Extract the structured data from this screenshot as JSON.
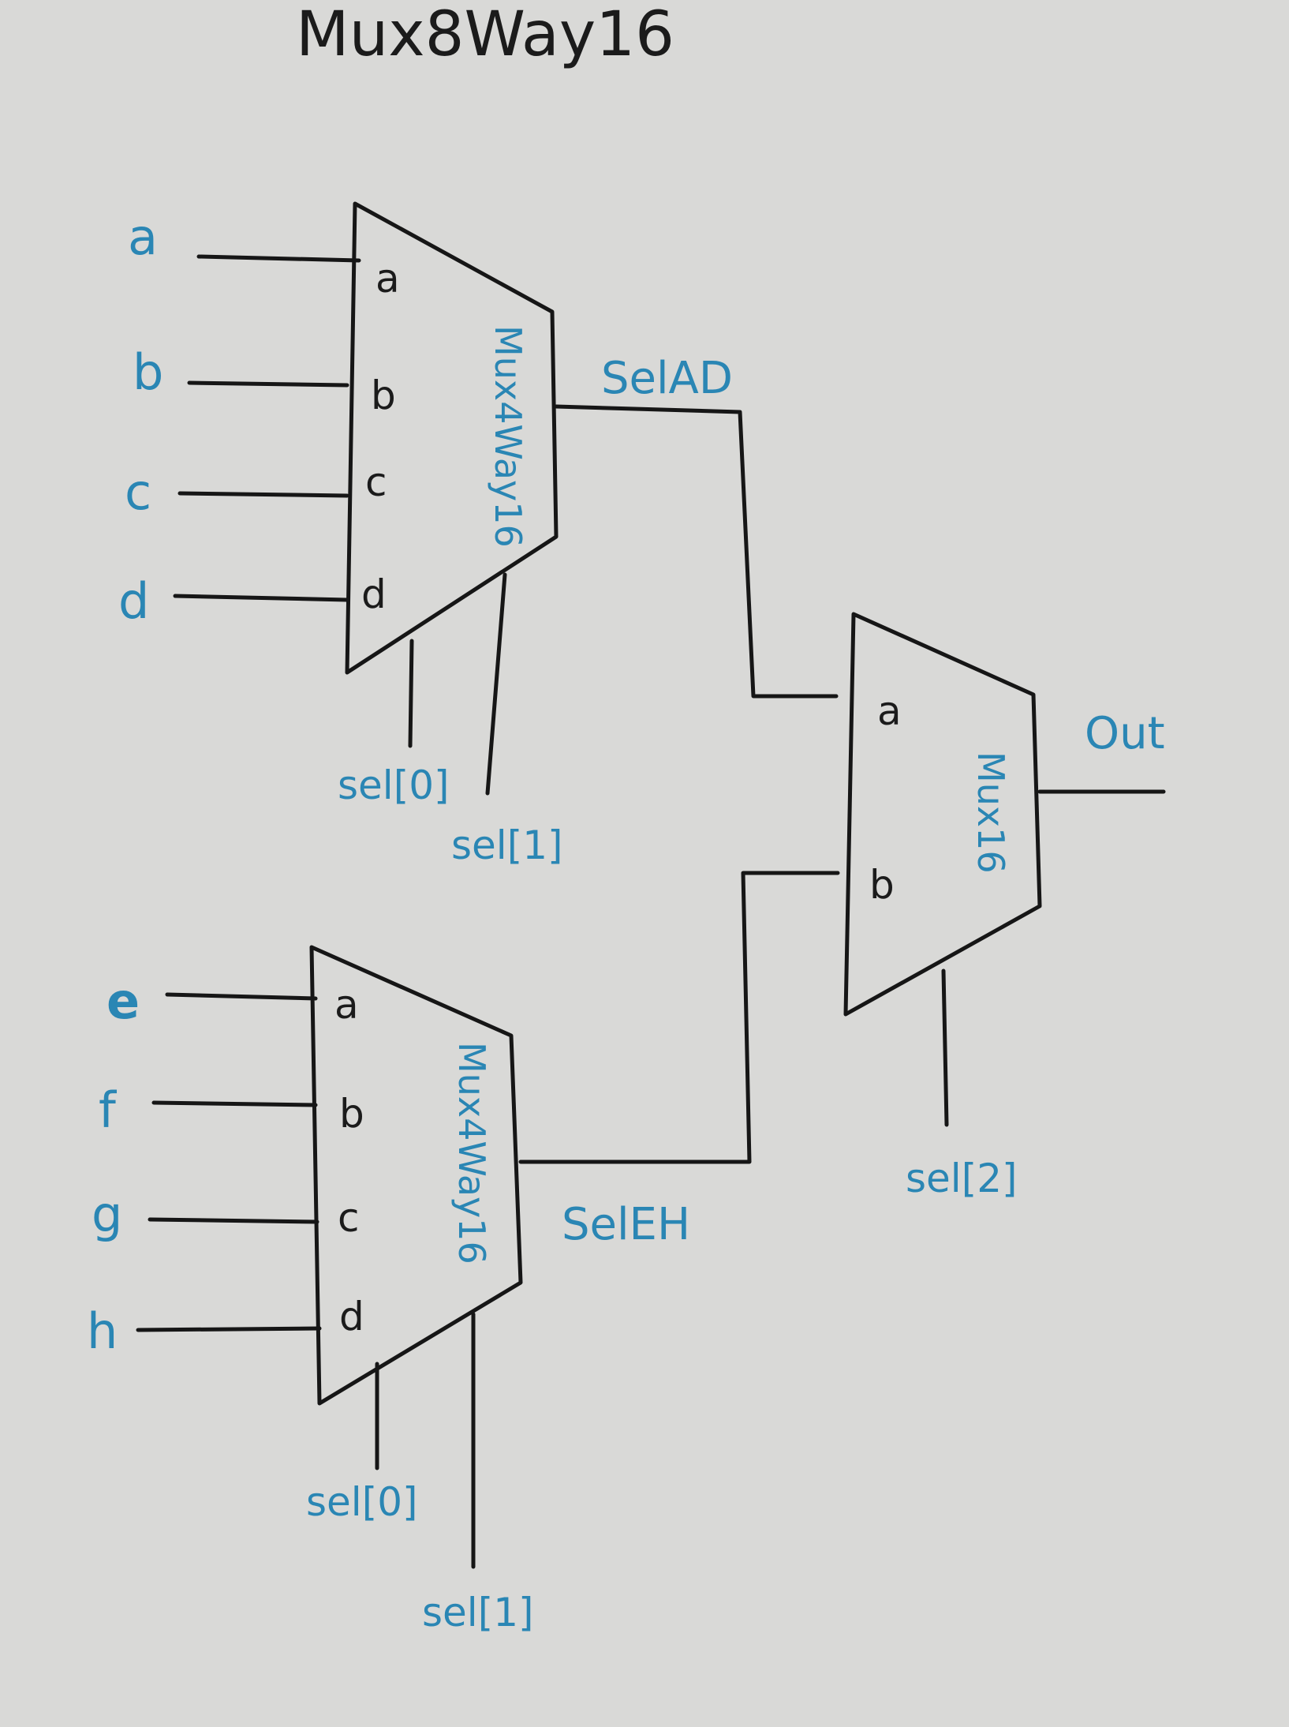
{
  "title": "Mux8Way16",
  "top_mux": {
    "name": "Mux4Way16",
    "inputs": [
      "a",
      "b",
      "c",
      "d"
    ],
    "pins": [
      "a",
      "b",
      "c",
      "d"
    ],
    "sel": [
      "sel[0]",
      "sel[1]"
    ],
    "output": "SelAD"
  },
  "bottom_mux": {
    "name": "Mux4Way16",
    "inputs": [
      "e",
      "f",
      "g",
      "h"
    ],
    "pins": [
      "a",
      "b",
      "c",
      "d"
    ],
    "sel": [
      "sel[0]",
      "sel[1]"
    ],
    "output": "SelEH"
  },
  "final_mux": {
    "name": "Mux16",
    "pins": [
      "a",
      "b"
    ],
    "sel": "sel[2]",
    "output": "Out"
  },
  "colors": {
    "ink": "#161616",
    "label": "#2a86b4",
    "paper": "#d9d9d7"
  }
}
